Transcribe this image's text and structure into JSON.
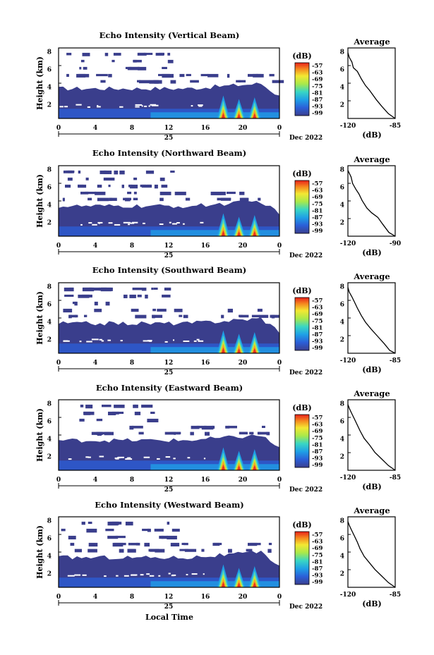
{
  "chart_data": [
    {
      "type": "heatmap",
      "title": "Echo Intensity (Vertical Beam)",
      "ylabel": "Height (km)",
      "xticks": [
        "0",
        "4",
        "8",
        "12",
        "16",
        "20",
        "0"
      ],
      "date_label": "25",
      "date_suffix": "Dec 2022",
      "yticks": [
        "2",
        "4",
        "6",
        "8"
      ],
      "colorbar_unit": "(dB)",
      "colorbar_ticks": [
        "-57",
        "-63",
        "-69",
        "-75",
        "-81",
        "-87",
        "-93",
        "-99"
      ],
      "avg_title": "Average",
      "avg_xlabel": "(dB)",
      "avg_xticks": [
        "-120",
        "-85"
      ],
      "avg_yticks": [
        "2",
        "4",
        "6",
        "8"
      ],
      "avg_xlim": [
        -120,
        -85
      ],
      "avg_profile": [
        [
          -85,
          1.0
        ],
        [
          -90,
          1.5
        ],
        [
          -95,
          2.3
        ],
        [
          -99,
          3.0
        ],
        [
          -104,
          4.0
        ],
        [
          -107,
          4.5
        ],
        [
          -110,
          5.2
        ],
        [
          -113,
          6.0
        ],
        [
          -116,
          6.4
        ],
        [
          -117,
          7.0
        ],
        [
          -119,
          7.5
        ],
        [
          -120,
          8.0
        ]
      ]
    },
    {
      "type": "heatmap",
      "title": "Echo Intensity (Northward Beam)",
      "ylabel": "Height (km)",
      "xticks": [
        "0",
        "4",
        "8",
        "12",
        "16",
        "20",
        "0"
      ],
      "date_label": "25",
      "date_suffix": "Dec 2022",
      "yticks": [
        "2",
        "4",
        "6",
        "8"
      ],
      "colorbar_unit": "(dB)",
      "colorbar_ticks": [
        "-57",
        "-63",
        "-69",
        "-75",
        "-81",
        "-87",
        "-93",
        "-99"
      ],
      "avg_title": "Average",
      "avg_xlabel": "(dB)",
      "avg_xticks": [
        "-120",
        "-90"
      ],
      "avg_yticks": [
        "2",
        "4",
        "6",
        "8"
      ],
      "avg_xlim": [
        -120,
        -90
      ],
      "avg_profile": [
        [
          -90,
          1.0
        ],
        [
          -94,
          1.4
        ],
        [
          -98,
          2.3
        ],
        [
          -101,
          3.0
        ],
        [
          -105,
          3.5
        ],
        [
          -108,
          4.0
        ],
        [
          -111,
          4.8
        ],
        [
          -113,
          5.5
        ],
        [
          -115,
          6.0
        ],
        [
          -117,
          6.6
        ],
        [
          -118,
          7.3
        ],
        [
          -120,
          8.0
        ]
      ]
    },
    {
      "type": "heatmap",
      "title": "Echo Intensity (Southward Beam)",
      "ylabel": "Height (km)",
      "xticks": [
        "0",
        "4",
        "8",
        "12",
        "16",
        "20",
        "0"
      ],
      "date_label": "25",
      "date_suffix": "Dec 2022",
      "yticks": [
        "2",
        "4",
        "6",
        "8"
      ],
      "colorbar_unit": "(dB)",
      "colorbar_ticks": [
        "-57",
        "-63",
        "-69",
        "-75",
        "-81",
        "-87",
        "-93",
        "-99"
      ],
      "avg_title": "Average",
      "avg_xlabel": "(dB)",
      "avg_xticks": [
        "-120",
        "-85"
      ],
      "avg_yticks": [
        "2",
        "4",
        "6",
        "8"
      ],
      "avg_xlim": [
        -120,
        -85
      ],
      "avg_profile": [
        [
          -85,
          1.0
        ],
        [
          -89,
          1.3
        ],
        [
          -93,
          2.0
        ],
        [
          -98,
          2.8
        ],
        [
          -103,
          3.6
        ],
        [
          -107,
          4.3
        ],
        [
          -110,
          5.0
        ],
        [
          -113,
          5.8
        ],
        [
          -115,
          6.4
        ],
        [
          -117,
          7.0
        ],
        [
          -119,
          7.5
        ],
        [
          -120,
          8.0
        ]
      ]
    },
    {
      "type": "heatmap",
      "title": "Echo Intensity (Eastward Beam)",
      "ylabel": "Height (km)",
      "xticks": [
        "0",
        "4",
        "8",
        "12",
        "16",
        "20",
        "0"
      ],
      "date_label": "25",
      "date_suffix": "Dec 2022",
      "yticks": [
        "2",
        "4",
        "6",
        "8"
      ],
      "colorbar_unit": "(dB)",
      "colorbar_ticks": [
        "-57",
        "-63",
        "-69",
        "-75",
        "-81",
        "-87",
        "-93",
        "-99"
      ],
      "avg_title": "Average",
      "avg_xlabel": "(dB)",
      "avg_xticks": [
        "-120",
        "-85"
      ],
      "avg_yticks": [
        "2",
        "4",
        "6",
        "8"
      ],
      "avg_xlim": [
        -120,
        -85
      ],
      "avg_profile": [
        [
          -85,
          1.0
        ],
        [
          -90,
          1.5
        ],
        [
          -95,
          2.2
        ],
        [
          -100,
          2.9
        ],
        [
          -104,
          3.7
        ],
        [
          -108,
          4.4
        ],
        [
          -111,
          5.2
        ],
        [
          -113,
          5.8
        ],
        [
          -115,
          6.4
        ],
        [
          -117,
          7.0
        ],
        [
          -119,
          7.6
        ],
        [
          -120,
          8.0
        ]
      ]
    },
    {
      "type": "heatmap",
      "title": "Echo Intensity (Westward Beam)",
      "ylabel": "Height (km)",
      "xticks": [
        "0",
        "4",
        "8",
        "12",
        "16",
        "20",
        "0"
      ],
      "date_label": "25",
      "date_suffix": "Dec 2022",
      "yticks": [
        "2",
        "4",
        "6",
        "8"
      ],
      "colorbar_unit": "(dB)",
      "colorbar_ticks": [
        "-57",
        "-63",
        "-69",
        "-75",
        "-81",
        "-87",
        "-93",
        "-99"
      ],
      "avg_title": "Average",
      "avg_xlabel": "(dB)",
      "avg_xticks": [
        "-120",
        "-85"
      ],
      "avg_yticks": [
        "2",
        "4",
        "6",
        "8"
      ],
      "avg_xlim": [
        -120,
        -85
      ],
      "avg_profile": [
        [
          -85,
          1.0
        ],
        [
          -90,
          1.5
        ],
        [
          -95,
          2.2
        ],
        [
          -100,
          2.9
        ],
        [
          -104,
          3.6
        ],
        [
          -108,
          4.3
        ],
        [
          -111,
          5.1
        ],
        [
          -113,
          5.8
        ],
        [
          -115,
          6.4
        ],
        [
          -117,
          7.0
        ],
        [
          -119,
          7.6
        ],
        [
          -120,
          8.0
        ]
      ]
    }
  ],
  "xlabel": "Local Time"
}
